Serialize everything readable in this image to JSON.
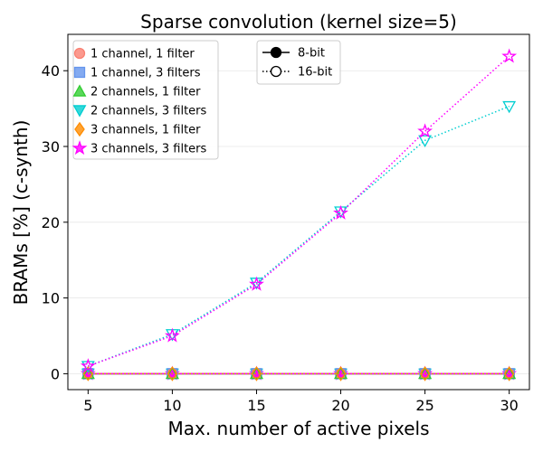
{
  "chart_data": {
    "type": "line",
    "title": "Sparse convolution (kernel size=5)",
    "xlabel": "Max. number of active pixels",
    "ylabel": "BRAMs [%] (c-synth)",
    "x": [
      5,
      10,
      15,
      20,
      25,
      30
    ],
    "xticks": [
      5,
      10,
      15,
      20,
      25,
      30
    ],
    "yticks": [
      0,
      10,
      20,
      30,
      40
    ],
    "xlim": [
      3.8,
      31.2
    ],
    "ylim": [
      -2.1,
      44.8
    ],
    "grid": "horizontal",
    "legend_position": "top-left",
    "series": [
      {
        "name": "1 channel, 1 filter",
        "bits": "8-bit",
        "color": "#fa8072",
        "marker": "circle",
        "values": [
          0,
          0,
          0,
          0,
          0,
          0
        ]
      },
      {
        "name": "1 channel, 3 filters",
        "bits": "8-bit",
        "color": "#6495ed",
        "marker": "square",
        "values": [
          0,
          0,
          0,
          0,
          0,
          0
        ]
      },
      {
        "name": "2 channels, 1 filter",
        "bits": "8-bit",
        "color": "#32cd32",
        "marker": "triangle-up",
        "values": [
          0,
          0,
          0,
          0,
          0,
          0
        ]
      },
      {
        "name": "2 channels, 3 filters",
        "bits": "8-bit",
        "color": "#00ced1",
        "marker": "triangle-down",
        "values": [
          0,
          0,
          0,
          0,
          0,
          0
        ]
      },
      {
        "name": "3 channels, 1 filter",
        "bits": "8-bit",
        "color": "#ff8c00",
        "marker": "diamond",
        "values": [
          0,
          0,
          0,
          0,
          0,
          0
        ]
      },
      {
        "name": "3 channels, 3 filters",
        "bits": "8-bit",
        "color": "#ff00ff",
        "marker": "star",
        "values": [
          0,
          0,
          0,
          0,
          0,
          0
        ]
      },
      {
        "name": "1 channel, 1 filter",
        "bits": "16-bit",
        "color": "#fa8072",
        "marker": "circle",
        "values": [
          0,
          0,
          0,
          0,
          0,
          0
        ]
      },
      {
        "name": "1 channel, 3 filters",
        "bits": "16-bit",
        "color": "#6495ed",
        "marker": "square",
        "values": [
          0,
          0,
          0,
          0,
          0,
          0
        ]
      },
      {
        "name": "2 channels, 1 filter",
        "bits": "16-bit",
        "color": "#32cd32",
        "marker": "triangle-up",
        "values": [
          0,
          0,
          0,
          0,
          0,
          0
        ]
      },
      {
        "name": "3 channels, 1 filter",
        "bits": "16-bit",
        "color": "#ff8c00",
        "marker": "diamond",
        "values": [
          0,
          0,
          0,
          0,
          0,
          0
        ]
      },
      {
        "name": "2 channels, 3 filters",
        "bits": "16-bit",
        "color": "#00ced1",
        "marker": "triangle-down",
        "values": [
          1.0,
          5.2,
          12.0,
          21.4,
          30.8,
          35.3
        ]
      },
      {
        "name": "3 channels, 3 filters",
        "bits": "16-bit",
        "color": "#ff00ff",
        "marker": "star",
        "values": [
          1.0,
          5.0,
          11.8,
          21.2,
          32.0,
          41.9
        ]
      }
    ],
    "legend_series": [
      {
        "label": "1 channel, 1 filter",
        "color": "#fa8072",
        "marker": "circle"
      },
      {
        "label": "1 channel, 3 filters",
        "color": "#6495ed",
        "marker": "square"
      },
      {
        "label": "2 channels, 1 filter",
        "color": "#32cd32",
        "marker": "triangle-up"
      },
      {
        "label": "2 channels, 3 filters",
        "color": "#00ced1",
        "marker": "triangle-down"
      },
      {
        "label": "3 channels, 1 filter",
        "color": "#ff8c00",
        "marker": "diamond"
      },
      {
        "label": "3 channels, 3 filters",
        "color": "#ff00ff",
        "marker": "star"
      }
    ],
    "legend_styles": [
      {
        "label": "8-bit",
        "line": "solid",
        "marker_fill": "filled"
      },
      {
        "label": "16-bit",
        "line": "dotted",
        "marker_fill": "hollow"
      }
    ]
  }
}
